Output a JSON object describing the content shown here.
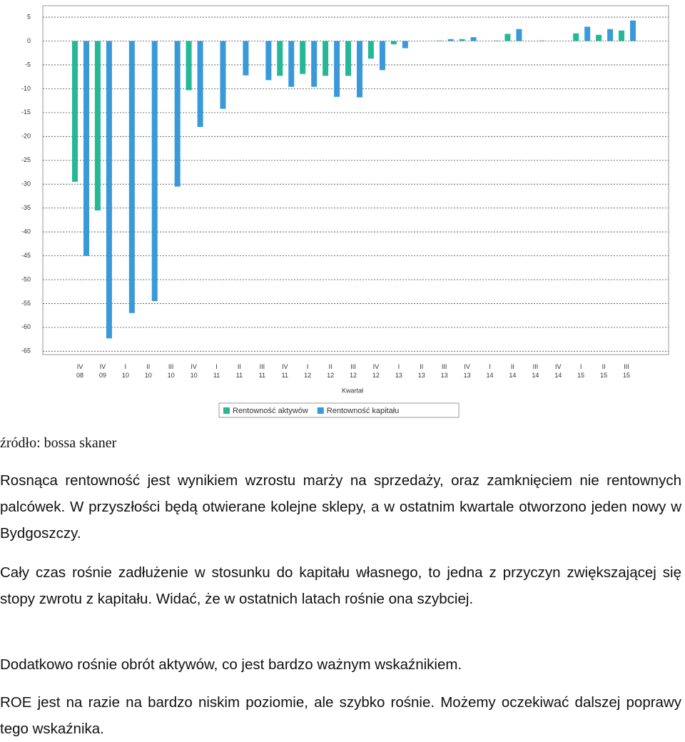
{
  "chart_data": {
    "type": "bar",
    "x_label": "Kwartał",
    "categories": [
      "IV 08",
      "IV 09",
      "I 10",
      "II 10",
      "III 10",
      "IV 10",
      "I 11",
      "II 11",
      "III 11",
      "IV 11",
      "I 12",
      "II 12",
      "III 12",
      "IV 12",
      "I 13",
      "II 13",
      "III 13",
      "IV 13",
      "I 14",
      "II 14",
      "III 14",
      "IV 14",
      "I 15",
      "II 15",
      "III 15"
    ],
    "series": [
      {
        "name": "Rentowność aktywów",
        "color": "#26b896",
        "values": [
          -29.5,
          -35.5,
          null,
          null,
          null,
          -10.3,
          null,
          null,
          null,
          -7.3,
          -6.9,
          -7.3,
          -7.3,
          -3.7,
          -0.7,
          null,
          0.1,
          0.4,
          null,
          1.5,
          null,
          null,
          1.6,
          1.3,
          2.2
        ]
      },
      {
        "name": "Rentowność kapitału",
        "color": "#3a9ad9",
        "values": [
          -45,
          -62.3,
          -57,
          -54.5,
          -30.5,
          -18,
          -14.2,
          -7.2,
          -8.2,
          -9.6,
          -9.6,
          -11.7,
          -11.8,
          -6.1,
          -1.5,
          null,
          0.4,
          0.8,
          0.1,
          2.5,
          0.1,
          null,
          3,
          2.5,
          4.3
        ]
      }
    ],
    "ylim": [
      -65.7,
      7.4
    ],
    "yticks": [
      5,
      0,
      -5,
      -10,
      -15,
      -20,
      -25,
      -30,
      -35,
      -40,
      -45,
      -50,
      -55,
      -60,
      -65
    ],
    "grid": true
  },
  "source": "źródło: bossa skaner",
  "paragraphs": [
    "Rosnąca rentowność jest wynikiem wzrostu marży na sprzedaży, oraz zamknięciem nie rentownych palcówek. W przyszłości będą otwierane kolejne sklepy, a w ostatnim kwartale otworzono jeden nowy w Bydgoszczy.",
    "Cały czas rośnie zadłużenie w stosunku do kapitału własnego, to jedna z przyczyn zwiększającej się stopy zwrotu z kapitału. Widać, że w ostatnich latach rośnie ona szybciej.",
    "Dodatkowo rośnie obrót aktywów, co jest bardzo ważnym wskaźnikiem.",
    "ROE jest na razie na bardzo niskim poziomie, ale szybko rośnie. Możemy oczekiwać dalszej poprawy tego wskaźnika."
  ]
}
